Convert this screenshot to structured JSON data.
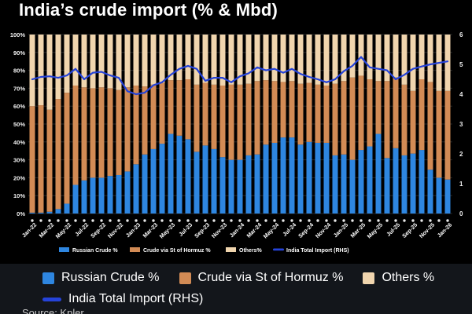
{
  "title": "India’s crude import (% & Mbd)",
  "source": "Source: Kpler",
  "colors": {
    "background": "#000000",
    "legend_panel": "#13161b",
    "bar_russian": "#2e86e0",
    "bar_hormuz": "#d28b55",
    "bar_others": "#f0d5ae",
    "line_total": "#2543d9",
    "grid": "#262626",
    "axis_text": "#f2f2f2",
    "tick_dot": "#e8e8e8"
  },
  "chart_data": {
    "type": "bar",
    "subtype": "stacked-bars-with-line",
    "title": "India’s crude import (% & Mbd)",
    "xlabel": "",
    "ylabel_left": "%",
    "ylabel_right": "Mbd",
    "grid": true,
    "legend_position": "bottom",
    "left_axis": {
      "min": 0,
      "max": 100,
      "tick_step": 10,
      "suffix": "%"
    },
    "right_axis": {
      "min": 0,
      "max": 6,
      "tick_step": 1
    },
    "x_tick_step": 2,
    "categories": [
      "Jan-22",
      "Feb-22",
      "Mar-22",
      "Apr-22",
      "May-22",
      "Jun-22",
      "Jul-22",
      "Aug-22",
      "Sep-22",
      "Oct-22",
      "Nov-22",
      "Dec-22",
      "Jan-23",
      "Feb-23",
      "Mar-23",
      "Apr-23",
      "May-23",
      "Jun-23",
      "Jul-23",
      "Aug-23",
      "Sep-23",
      "Oct-23",
      "Nov-23",
      "Dec-23",
      "Jan-24",
      "Feb-24",
      "Mar-24",
      "Apr-24",
      "May-24",
      "Jun-24",
      "Jul-24",
      "Aug-24",
      "Sep-24",
      "Oct-24",
      "Nov-24",
      "Dec-24",
      "Jan-25",
      "Feb-25",
      "Mar-25",
      "Apr-25",
      "May-25",
      "Jun-25",
      "Jul-25",
      "Aug-25",
      "Sep-25",
      "Oct-25",
      "Nov-25",
      "Dec-25",
      "Jan-26"
    ],
    "series": [
      {
        "name": "Russian Crude %",
        "type": "bar",
        "axis": "left",
        "color": "#2e86e0",
        "values": [
          0.5,
          0.5,
          1,
          2.5,
          5.5,
          16,
          18.5,
          20,
          20,
          21,
          21.5,
          23.5,
          27.5,
          33,
          36,
          39,
          44.5,
          43.5,
          41.5,
          34.5,
          38,
          36,
          31.5,
          30,
          30,
          32.5,
          33,
          38.5,
          39.5,
          42.5,
          42.5,
          38.5,
          40,
          39.5,
          39.5,
          32.5,
          33,
          30,
          35.5,
          37.5,
          44.5,
          31,
          36.5,
          32.5,
          33.5,
          35.5,
          24.5,
          20,
          19
        ]
      },
      {
        "name": "Crude via St of Hormuz %",
        "type": "bar",
        "axis": "left",
        "color": "#d28b55",
        "values": [
          59.5,
          60,
          57,
          61.5,
          62,
          55.5,
          52,
          50,
          50.5,
          49,
          47.5,
          47,
          44,
          38,
          36,
          34,
          30,
          31,
          33.5,
          37.5,
          35,
          36,
          40,
          42,
          42,
          40,
          41,
          36,
          34.5,
          31,
          31.5,
          34,
          33,
          32.5,
          32,
          40,
          41,
          46,
          41.5,
          37.5,
          29.5,
          43,
          39.5,
          39.5,
          35,
          39.5,
          49,
          48.5,
          49.5
        ]
      },
      {
        "name": "Others%",
        "type": "bar",
        "axis": "left",
        "color": "#f0d5ae",
        "values": [
          40,
          39.5,
          42,
          36,
          32.5,
          28.5,
          29.5,
          30,
          29.5,
          30,
          31,
          29.5,
          28.5,
          29,
          28,
          27,
          25.5,
          25.5,
          25,
          28,
          27,
          28,
          28.5,
          28,
          28,
          27.5,
          26,
          25.5,
          26,
          26.5,
          26,
          27.5,
          27,
          28,
          28.5,
          27.5,
          26,
          24,
          23,
          25,
          26,
          26,
          24,
          28,
          31.5,
          25,
          26.5,
          31.5,
          31.5
        ]
      },
      {
        "name": "India Total Import (RHS)",
        "type": "line",
        "axis": "right",
        "color": "#2543d9",
        "values": [
          4.5,
          4.58,
          4.6,
          4.55,
          4.63,
          4.85,
          4.5,
          4.72,
          4.75,
          4.63,
          4.55,
          4.1,
          4.0,
          4.05,
          4.3,
          4.4,
          4.65,
          4.85,
          4.95,
          4.85,
          4.45,
          4.55,
          4.55,
          4.4,
          4.6,
          4.7,
          4.9,
          4.8,
          4.85,
          4.72,
          4.85,
          4.68,
          4.58,
          4.5,
          4.4,
          4.5,
          4.77,
          4.95,
          5.25,
          4.9,
          4.85,
          4.8,
          4.5,
          4.65,
          4.85,
          4.93,
          5.0,
          5.05,
          5.1
        ]
      }
    ]
  },
  "legend": {
    "items": [
      {
        "label": "Russian Crude %",
        "swatch": "square",
        "color": "#2e86e0"
      },
      {
        "label": "Crude via St of Hormuz %",
        "swatch": "square",
        "color": "#d28b55"
      },
      {
        "label": "Others %",
        "swatch": "square",
        "color": "#f0d5ae"
      },
      {
        "label": "India Total Import (RHS)",
        "swatch": "line",
        "color": "#2543d9"
      }
    ]
  }
}
